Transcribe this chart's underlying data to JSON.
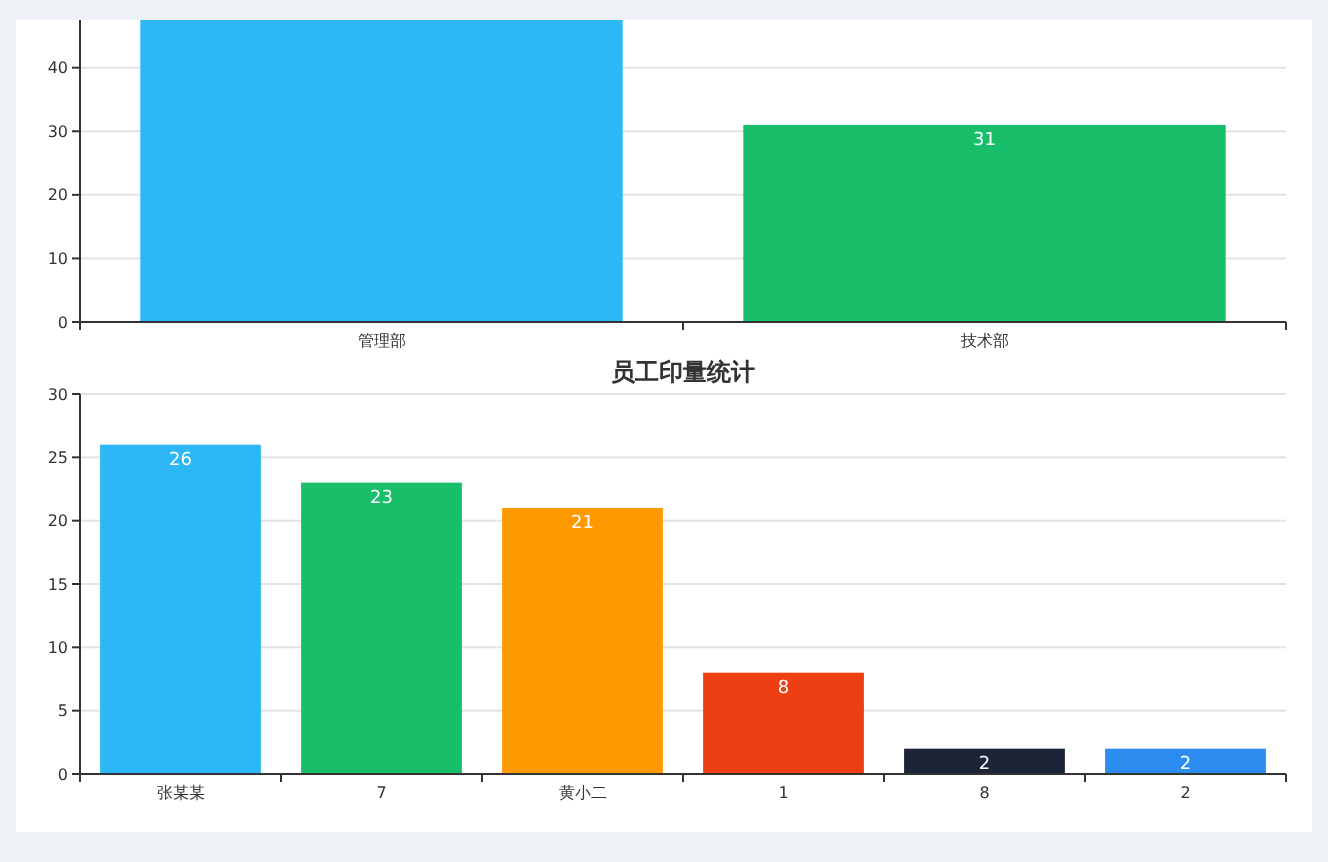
{
  "chart_data": [
    {
      "type": "bar",
      "categories": [
        "管理部",
        "技术部"
      ],
      "values": [
        47.5,
        31
      ],
      "colors": [
        "#2db7f5",
        "#19be6b"
      ],
      "value_labels": [
        null,
        "31"
      ],
      "ylim": [
        0,
        47.5
      ],
      "yticks": [
        0,
        10,
        20,
        30,
        40
      ],
      "grid": "y"
    },
    {
      "type": "bar",
      "title": "员工印量统计",
      "categories": [
        "张某某",
        "7",
        "黄小二",
        "1",
        "8",
        "2"
      ],
      "values": [
        26,
        23,
        21,
        8,
        2,
        2
      ],
      "colors": [
        "#2db7f5",
        "#19be6b",
        "#ff9900",
        "#ed3f14",
        "#1c2438",
        "#2d8cf0"
      ],
      "data_labels": true,
      "ylim": [
        0,
        30
      ],
      "yticks": [
        0,
        5,
        10,
        15,
        20,
        25,
        30
      ],
      "grid": "y"
    }
  ]
}
